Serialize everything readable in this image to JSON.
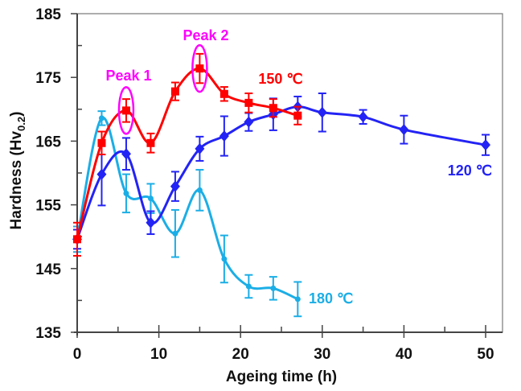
{
  "chart_data": {
    "type": "line",
    "title": "",
    "xlabel": "Ageing time  (h)",
    "ylabel": "Hardness (Hv",
    "ylabel_sub": "0.2",
    "ylabel_close": ")",
    "xlim": [
      0,
      52
    ],
    "ylim": [
      135,
      185
    ],
    "xticks": [
      0,
      10,
      20,
      30,
      40,
      50
    ],
    "xtick_labels": [
      "0",
      "10",
      "20",
      "30",
      "40",
      "50"
    ],
    "xminor": [
      5,
      15,
      25,
      35,
      45
    ],
    "yticks": [
      135,
      145,
      155,
      165,
      175,
      185
    ],
    "ytick_labels": [
      "135",
      "145",
      "155",
      "165",
      "175",
      "185"
    ],
    "yminor": [
      140,
      150,
      160,
      170,
      180
    ],
    "grid": false,
    "series": [
      {
        "name": "120 ℃",
        "color": "#2323F5",
        "marker": "diamond",
        "smooth": true,
        "x": [
          0,
          3,
          6,
          9,
          12,
          15,
          18,
          21,
          24,
          27,
          30,
          35,
          40,
          50
        ],
        "y": [
          149.6,
          159.8,
          163.0,
          152.2,
          157.9,
          163.8,
          165.8,
          168.0,
          169.2,
          170.4,
          169.5,
          168.8,
          166.8,
          164.4
        ],
        "err": [
          1.5,
          4.9,
          2.5,
          1.8,
          2.3,
          1.9,
          3.1,
          1.4,
          2.5,
          1.6,
          3.0,
          1.1,
          2.2,
          1.6
        ],
        "label_position": "lower-right"
      },
      {
        "name": "150 ℃",
        "color": "#FF0000",
        "marker": "square",
        "smooth": true,
        "x": [
          0,
          3,
          6,
          9,
          12,
          15,
          18,
          21,
          24,
          27
        ],
        "y": [
          149.6,
          164.7,
          169.8,
          164.7,
          172.8,
          176.4,
          172.4,
          171.0,
          170.2,
          169.0
        ],
        "err": [
          2.6,
          1.8,
          1.8,
          1.5,
          1.4,
          2.3,
          1.1,
          1.5,
          1.4,
          1.4
        ],
        "label_position": "top"
      },
      {
        "name": "180 ℃",
        "color": "#1BAEE6",
        "marker": "triangle",
        "smooth": true,
        "x": [
          0,
          3,
          6,
          9,
          12,
          15,
          18,
          21,
          24,
          27
        ],
        "y": [
          149.6,
          168.6,
          156.8,
          156.0,
          150.5,
          157.3,
          146.5,
          142.2,
          141.9,
          140.2
        ],
        "err": [
          2.0,
          1.1,
          3.0,
          2.3,
          3.7,
          3.2,
          3.7,
          1.8,
          1.8,
          2.7
        ],
        "label_position": "right"
      }
    ],
    "annotations": [
      {
        "text": "Peak 1",
        "x": 6,
        "y": 169.8,
        "color": "#FF00FF",
        "shape": "ellipse"
      },
      {
        "text": "Peak 2",
        "x": 15,
        "y": 176.4,
        "color": "#FF00FF",
        "shape": "ellipse"
      }
    ]
  }
}
